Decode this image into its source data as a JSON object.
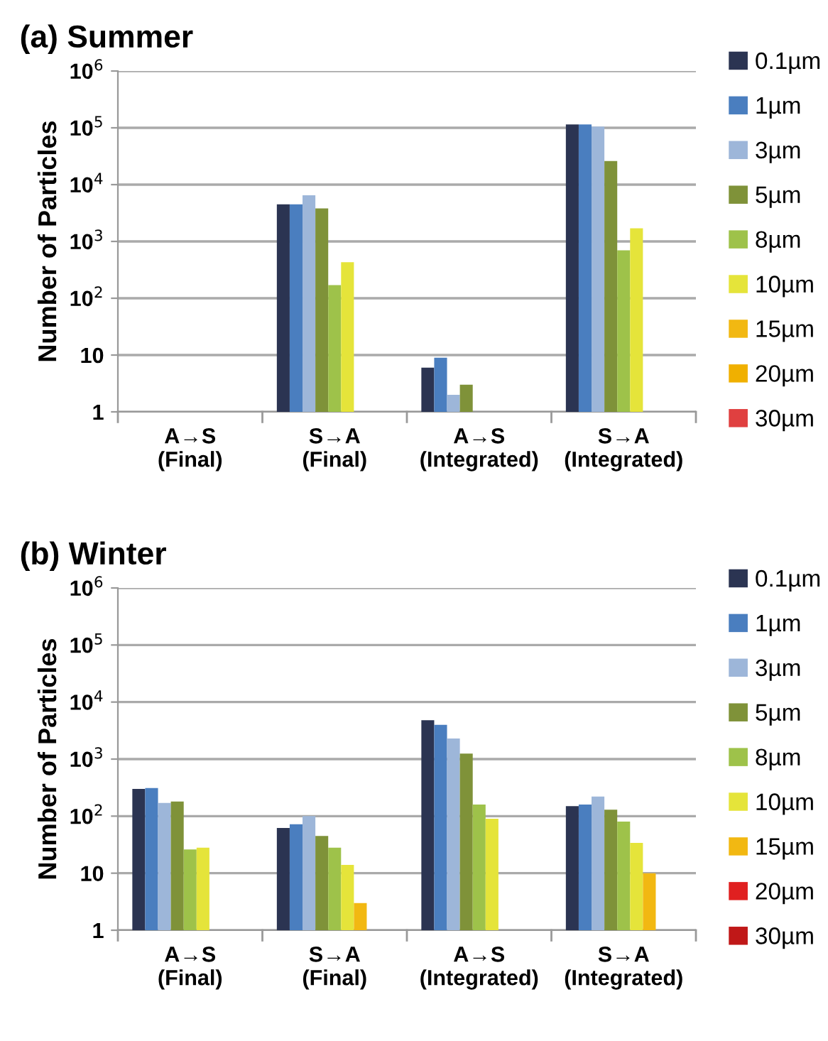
{
  "chart_data": [
    {
      "type": "bar",
      "title": "(a) Summer",
      "ylabel": "Number of Particles",
      "log": true,
      "grid": "y",
      "legend": "right",
      "categories": [
        "A→S\n(Final)",
        "S→A\n(Final)",
        "A→S\n(Integrated)",
        "S→A\n(Integrated)"
      ],
      "ylim": [
        1,
        1000000
      ],
      "yticks": [
        1,
        10,
        {
          "value": 100,
          "label": "10$^{2}$"
        },
        {
          "value": 1000,
          "label": "10$^{3}$"
        },
        {
          "value": 10000,
          "label": "10$^{4}$"
        },
        {
          "value": 100000,
          "label": "10$^{5}$"
        },
        {
          "value": 1000000,
          "label": "10$^{6}$"
        }
      ],
      "series": [
        {
          "name": "0.1µm",
          "color": "#2b3452",
          "values": [
            null,
            4500,
            6,
            115000
          ]
        },
        {
          "name": "1µm",
          "color": "#4a7ebf",
          "values": [
            null,
            4500,
            9,
            115000
          ]
        },
        {
          "name": "3µm",
          "color": "#9db6d9",
          "values": [
            null,
            6500,
            2,
            105000
          ]
        },
        {
          "name": "5µm",
          "color": "#7f9239",
          "values": [
            null,
            3800,
            3,
            26000
          ]
        },
        {
          "name": "8µm",
          "color": "#9ec24a",
          "values": [
            null,
            170,
            null,
            700
          ]
        },
        {
          "name": "10µm",
          "color": "#e5e43a",
          "values": [
            null,
            430,
            null,
            1700
          ]
        },
        {
          "name": "15µm",
          "color": "#f2b812",
          "values": [
            null,
            null,
            null,
            null
          ]
        },
        {
          "name": "20µm",
          "color": "#f0b000",
          "values": [
            null,
            null,
            null,
            null
          ]
        },
        {
          "name": "30µm",
          "color": "#e04040",
          "values": [
            null,
            null,
            null,
            null
          ]
        }
      ]
    },
    {
      "type": "bar",
      "title": "(b) Winter",
      "ylabel": "Number of Particles",
      "log": true,
      "grid": "y",
      "legend": "right",
      "categories": [
        "A→S\n(Final)",
        "S→A\n(Final)",
        "A→S\n(Integrated)",
        "S→A\n(Integrated)"
      ],
      "ylim": [
        1,
        1000000
      ],
      "yticks": [
        1,
        10,
        {
          "value": 100,
          "label": "10$^{2}$"
        },
        {
          "value": 1000,
          "label": "10$^{3}$"
        },
        {
          "value": 10000,
          "label": "10$^{4}$"
        },
        {
          "value": 100000,
          "label": "10$^{5}$"
        },
        {
          "value": 1000000,
          "label": "10$^{6}$"
        }
      ],
      "series": [
        {
          "name": "0.1µm",
          "color": "#2b3452",
          "values": [
            300,
            62,
            4800,
            150
          ]
        },
        {
          "name": "1µm",
          "color": "#4a7ebf",
          "values": [
            310,
            72,
            4000,
            160
          ]
        },
        {
          "name": "3µm",
          "color": "#9db6d9",
          "values": [
            170,
            100,
            2300,
            220
          ]
        },
        {
          "name": "5µm",
          "color": "#7f9239",
          "values": [
            180,
            45,
            1250,
            130
          ]
        },
        {
          "name": "8µm",
          "color": "#9ec24a",
          "values": [
            26,
            28,
            160,
            80
          ]
        },
        {
          "name": "10µm",
          "color": "#e5e43a",
          "values": [
            28,
            14,
            90,
            34
          ]
        },
        {
          "name": "15µm",
          "color": "#f2b812",
          "values": [
            null,
            3,
            null,
            10
          ]
        },
        {
          "name": "20µm",
          "color": "#e02020",
          "values": [
            null,
            null,
            null,
            null
          ]
        },
        {
          "name": "30µm",
          "color": "#c01818",
          "values": [
            null,
            null,
            null,
            null
          ]
        }
      ]
    }
  ]
}
